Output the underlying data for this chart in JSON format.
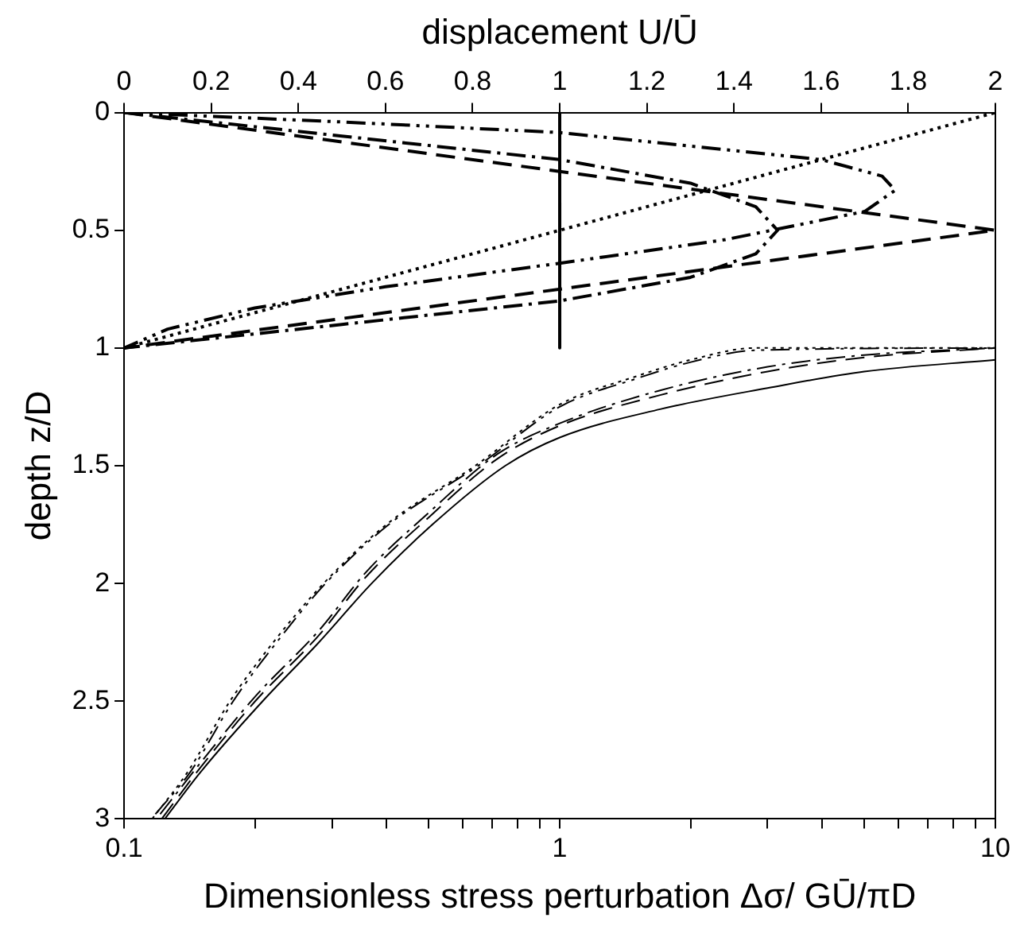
{
  "chart_data": {
    "type": "line",
    "xlabel": "Dimensionless stress perturbation Δσ/ GŪ/πD",
    "x2label": "displacement U/Ū",
    "ylabel": "depth z/D",
    "log": "x",
    "xlim": [
      0.1,
      10
    ],
    "xticks": [
      0.1,
      {
        "value": 0.2,
        "label": null
      },
      {
        "value": 0.3,
        "label": null
      },
      {
        "value": 0.4,
        "label": null
      },
      {
        "value": 0.5,
        "label": null
      },
      {
        "value": 0.6,
        "label": null
      },
      {
        "value": 0.7,
        "label": null
      },
      {
        "value": 0.8,
        "label": null
      },
      {
        "value": 0.9,
        "label": null
      },
      1,
      {
        "value": 2,
        "label": null
      },
      {
        "value": 3,
        "label": null
      },
      {
        "value": 4,
        "label": null
      },
      {
        "value": 5,
        "label": null
      },
      {
        "value": 6,
        "label": null
      },
      {
        "value": 7,
        "label": null
      },
      {
        "value": 8,
        "label": null
      },
      {
        "value": 9,
        "label": null
      },
      10
    ],
    "x2lim": [
      0,
      2
    ],
    "x2ticks": [
      0,
      0.2,
      0.4,
      0.6,
      0.8,
      1,
      1.2,
      1.4,
      1.6,
      1.8,
      2
    ],
    "ylim": [
      3,
      0
    ],
    "yticks": [
      0,
      0.5,
      1,
      1.5,
      2,
      2.5,
      3
    ],
    "grid": false,
    "legend": false,
    "marker": "none",
    "series": [
      {
        "axis": "x2",
        "color": "#000000",
        "line_style": "dotted",
        "x": [
          0,
          2
        ],
        "values": [
          1,
          0
        ]
      },
      {
        "axis": "x2",
        "color": "#000000",
        "line_style": "dashed",
        "x": [
          0,
          2,
          0
        ],
        "values": [
          0,
          0.5,
          1
        ]
      },
      {
        "axis": "x2",
        "color": "#000000",
        "line_style": "dashdotdot",
        "x": [
          0,
          0.5,
          1,
          1.6,
          1.74,
          1.77,
          1.7,
          1.38,
          1,
          0.6,
          0.3,
          0.1,
          0
        ],
        "values": [
          0,
          0.04,
          0.085,
          0.2,
          0.27,
          0.33,
          0.42,
          0.54,
          0.64,
          0.74,
          0.83,
          0.92,
          1
        ]
      },
      {
        "axis": "x2",
        "color": "#000000",
        "line_style": "dashdot",
        "x": [
          0,
          0.5,
          1,
          1.3,
          1.45,
          1.5,
          1.45,
          1.3,
          1,
          0.5,
          0
        ],
        "values": [
          0,
          0.1,
          0.2,
          0.3,
          0.4,
          0.5,
          0.6,
          0.7,
          0.8,
          0.9,
          1
        ]
      },
      {
        "axis": "x2",
        "color": "#000000",
        "line_style": "solid",
        "x": [
          1,
          1
        ],
        "values": [
          0,
          1
        ]
      },
      {
        "color": "#000000",
        "line_style": "solid",
        "x": [
          0.124,
          0.15,
          0.208,
          0.28,
          0.37,
          0.51,
          0.75,
          1,
          1.7,
          3,
          5,
          10
        ],
        "values": [
          3,
          2.8,
          2.5,
          2.25,
          2,
          1.75,
          1.5,
          1.38,
          1.26,
          1.17,
          1.1,
          1.05
        ]
      },
      {
        "color": "#000000",
        "line_style": "dashed",
        "x": [
          0.122,
          0.15,
          0.2,
          0.28,
          0.36,
          0.5,
          0.72,
          1,
          1.7,
          3,
          5,
          10
        ],
        "values": [
          3,
          2.78,
          2.5,
          2.22,
          1.97,
          1.72,
          1.47,
          1.33,
          1.2,
          1.1,
          1.04,
          1
        ]
      },
      {
        "color": "#000000",
        "line_style": "dashdot",
        "x": [
          0.121,
          0.15,
          0.2,
          0.28,
          0.36,
          0.5,
          0.72,
          1,
          1.7,
          3,
          5,
          10
        ],
        "values": [
          2.98,
          2.76,
          2.48,
          2.2,
          1.95,
          1.7,
          1.45,
          1.32,
          1.18,
          1.08,
          1.03,
          1
        ]
      },
      {
        "color": "#000000",
        "line_style": "dotted",
        "x": [
          0.116,
          0.14,
          0.175,
          0.22,
          0.287,
          0.4,
          0.64,
          1,
          1.5,
          2,
          2.8,
          10
        ],
        "values": [
          3,
          2.8,
          2.5,
          2.25,
          2,
          1.75,
          1.5,
          1.24,
          1.12,
          1.05,
          1,
          1
        ]
      },
      {
        "color": "#000000",
        "line_style": "dashdotdot",
        "x": [
          0.118,
          0.142,
          0.178,
          0.224,
          0.29,
          0.405,
          0.65,
          1,
          1.5,
          2,
          2.8,
          10
        ],
        "values": [
          2.98,
          2.8,
          2.5,
          2.25,
          2,
          1.75,
          1.5,
          1.25,
          1.13,
          1.06,
          1.01,
          1
        ]
      }
    ]
  }
}
